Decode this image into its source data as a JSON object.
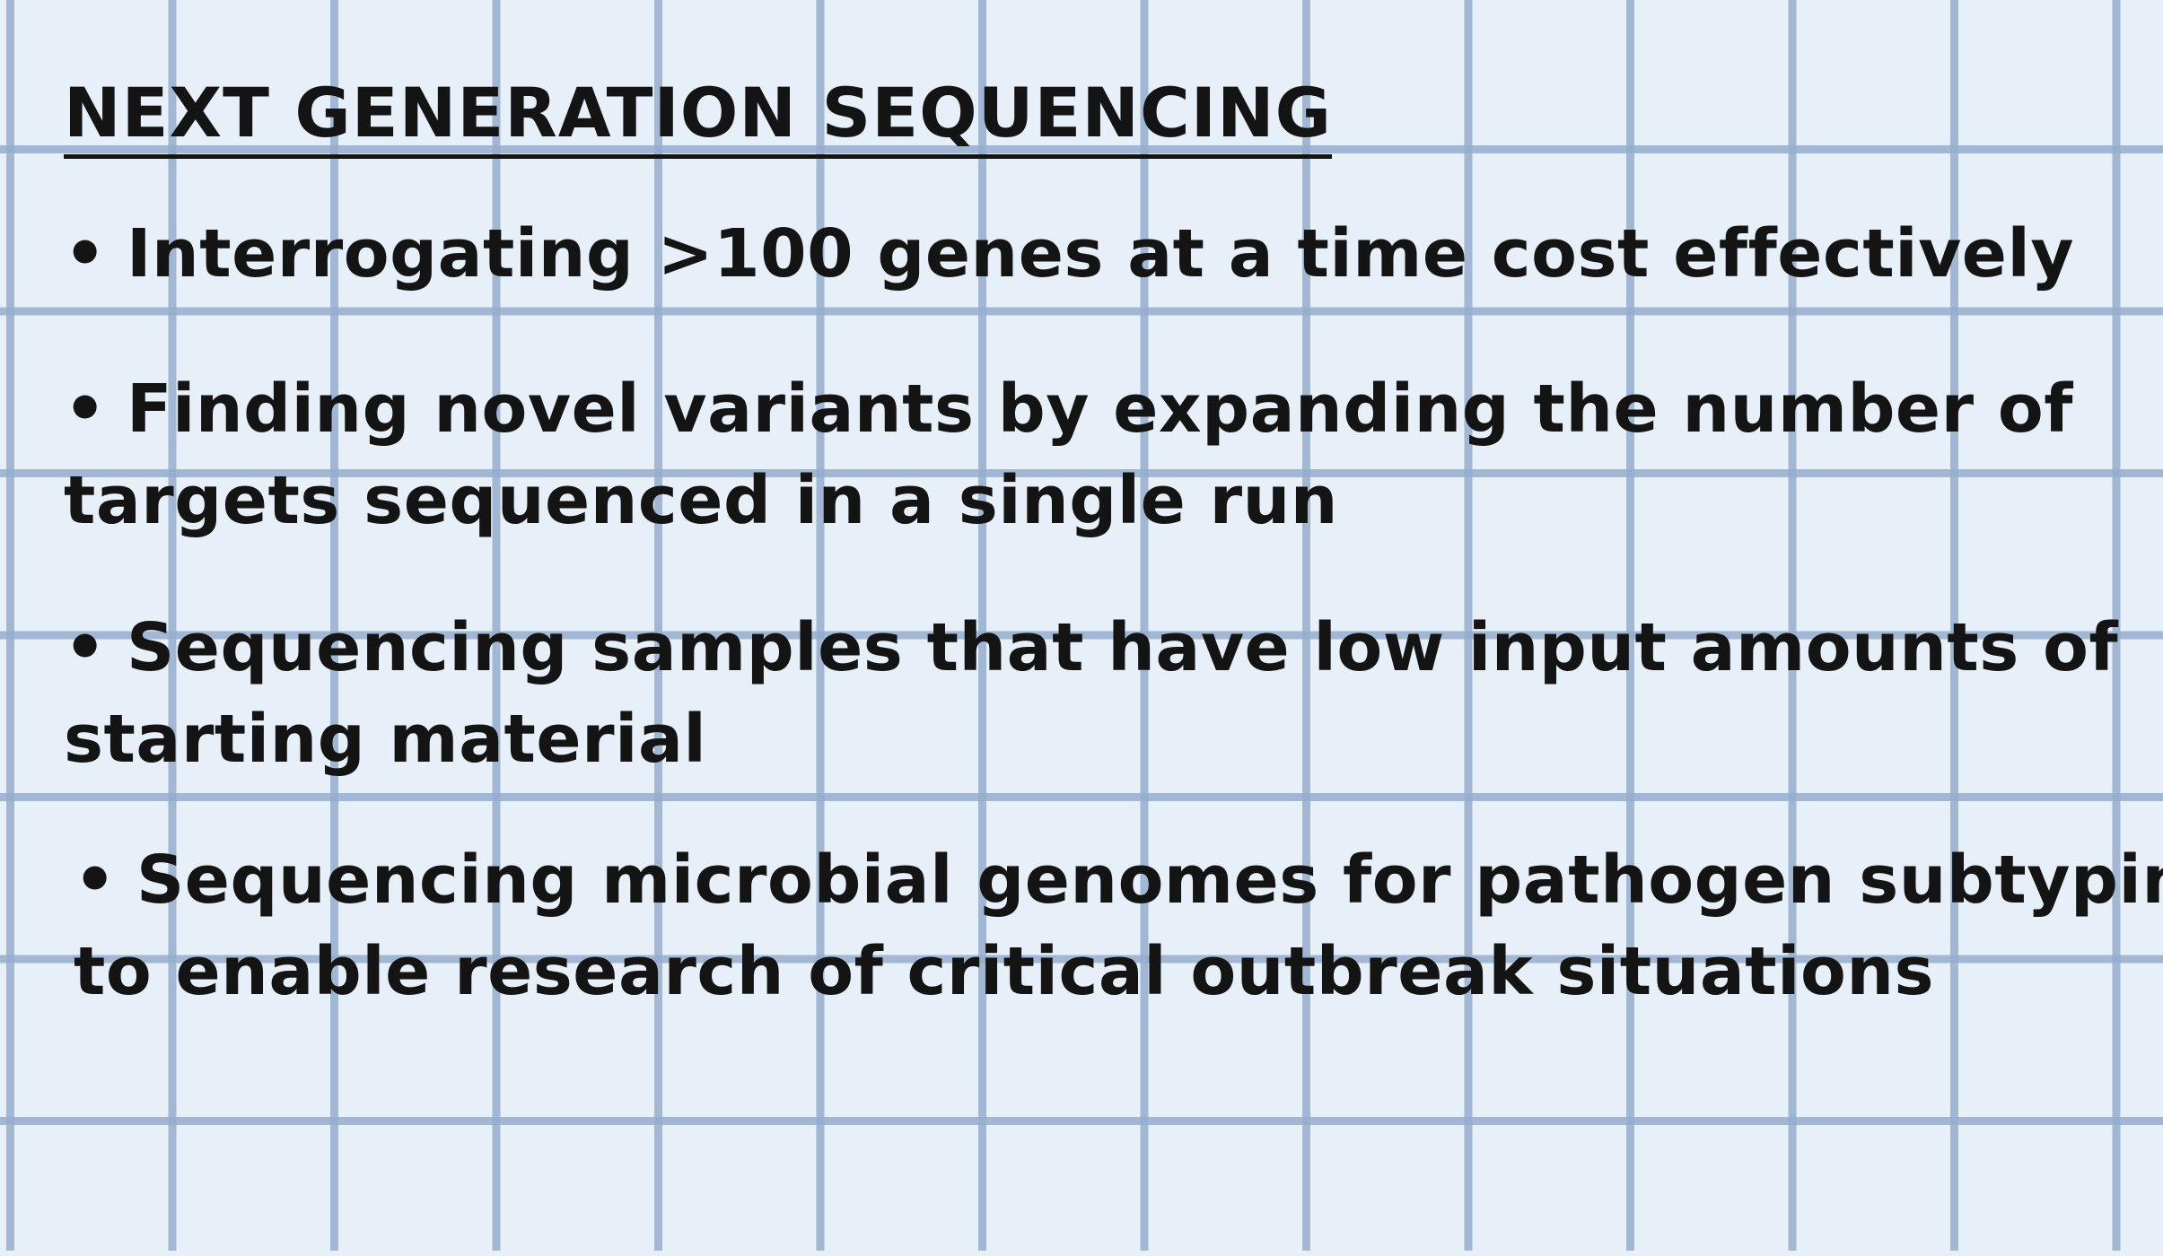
{
  "title": "NEXT GENERATION SEQUENCING",
  "bullet_glyph": "•",
  "bullets": [
    {
      "lines": [
        "Interrogating >100 genes at a time cost effectively"
      ]
    },
    {
      "lines": [
        "Finding novel variants by expanding the number of",
        "targets sequenced in a single run"
      ]
    },
    {
      "lines": [
        "Sequencing samples that have low input amounts of",
        "starting material"
      ]
    },
    {
      "lines": [
        "Sequencing microbial genomes for pathogen subtyping",
        "to enable research of critical outbreak situations"
      ]
    }
  ],
  "colors": {
    "background": "#e7eff9",
    "grid_line": "#96adcd",
    "text": "#141414"
  }
}
